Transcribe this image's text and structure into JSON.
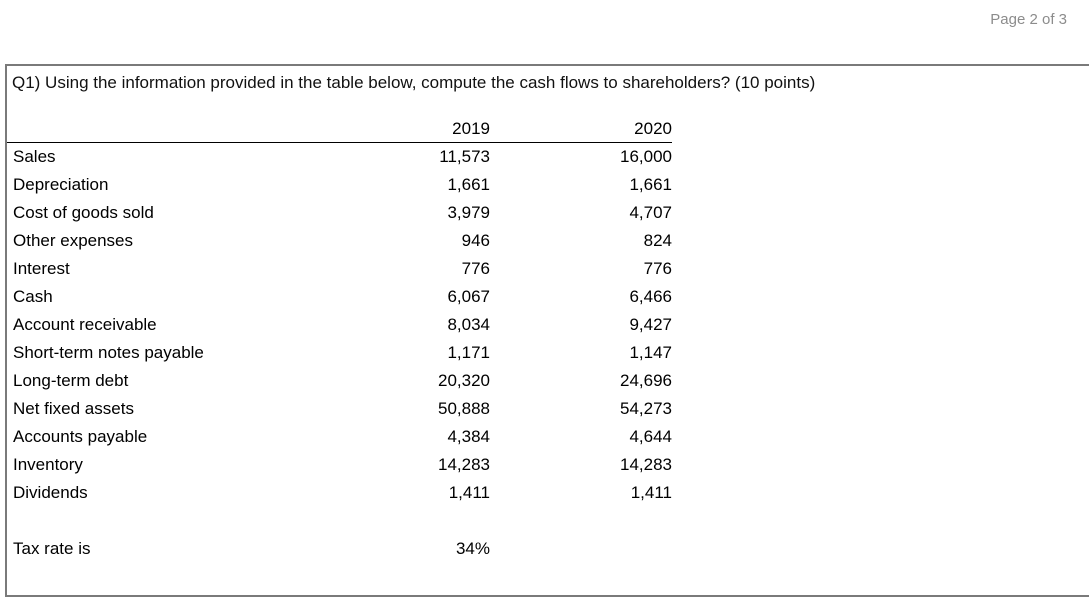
{
  "page": {
    "page_number": "Page 2 of 3"
  },
  "question": {
    "text": "Q1) Using the information provided in the table below, compute the cash flows to shareholders? (10 points)"
  },
  "table": {
    "columns": {
      "col1": "2019",
      "col2": "2020"
    },
    "rows": [
      {
        "label": "Sales",
        "y2019": "11,573",
        "y2020": "16,000"
      },
      {
        "label": "Depreciation",
        "y2019": "1,661",
        "y2020": "1,661"
      },
      {
        "label": "Cost of goods sold",
        "y2019": "3,979",
        "y2020": "4,707"
      },
      {
        "label": "Other expenses",
        "y2019": "946",
        "y2020": "824"
      },
      {
        "label": "Interest",
        "y2019": "776",
        "y2020": "776"
      },
      {
        "label": "Cash",
        "y2019": "6,067",
        "y2020": "6,466"
      },
      {
        "label": "Account receivable",
        "y2019": "8,034",
        "y2020": "9,427"
      },
      {
        "label": "Short-term notes payable",
        "y2019": "1,171",
        "y2020": "1,147"
      },
      {
        "label": "Long-term debt",
        "y2019": "20,320",
        "y2020": "24,696"
      },
      {
        "label": "Net fixed assets",
        "y2019": "50,888",
        "y2020": "54,273"
      },
      {
        "label": "Accounts payable",
        "y2019": "4,384",
        "y2020": "4,644"
      },
      {
        "label": "Inventory",
        "y2019": "14,283",
        "y2020": "14,283"
      },
      {
        "label": "Dividends",
        "y2019": "1,411",
        "y2020": "1,411"
      }
    ],
    "tax_row": {
      "label": "Tax rate is",
      "value": "34%"
    }
  },
  "colors": {
    "box_border": "#7a7a7a",
    "page_number_text": "#8c8c8c",
    "header_rule": "#000000"
  },
  "chart_data": {
    "type": "table",
    "title": "Q1 financial statement data",
    "categories": [
      "Sales",
      "Depreciation",
      "Cost of goods sold",
      "Other expenses",
      "Interest",
      "Cash",
      "Account receivable",
      "Short-term notes payable",
      "Long-term debt",
      "Net fixed assets",
      "Accounts payable",
      "Inventory",
      "Dividends"
    ],
    "series": [
      {
        "name": "2019",
        "values": [
          11573,
          1661,
          3979,
          946,
          776,
          6067,
          8034,
          1171,
          20320,
          50888,
          4384,
          14283,
          1411
        ]
      },
      {
        "name": "2020",
        "values": [
          16000,
          1661,
          4707,
          824,
          776,
          6466,
          9427,
          1147,
          24696,
          54273,
          4644,
          14283,
          1411
        ]
      }
    ],
    "tax_rate": 0.34
  }
}
